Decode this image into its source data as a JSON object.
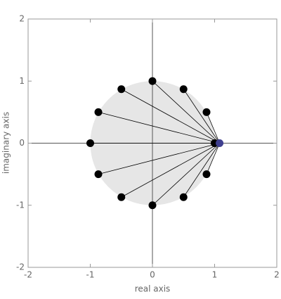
{
  "chart_data": {
    "type": "scatter",
    "xlabel": "real axis",
    "ylabel": "imaginary axis",
    "xlim": [
      -2,
      2
    ],
    "ylim": [
      -2,
      2
    ],
    "xticks": [
      -2,
      -1,
      0,
      1,
      2
    ],
    "yticks": [
      -2,
      -1,
      0,
      1,
      2
    ],
    "disk": {
      "radius": 1,
      "color": "#e6e6e6"
    },
    "points": {
      "color": "#000000",
      "x": [
        1,
        0.87,
        0.5,
        0,
        -0.5,
        -0.87,
        -1,
        -0.87,
        -0.5,
        0,
        0.5,
        0.87
      ],
      "y": [
        0,
        0.5,
        0.87,
        1,
        0.87,
        0.5,
        0,
        -0.5,
        -0.87,
        -1,
        -0.87,
        -0.5
      ]
    },
    "hub": {
      "x": 1.08,
      "y": 0,
      "color": "#3f3f8f"
    }
  }
}
